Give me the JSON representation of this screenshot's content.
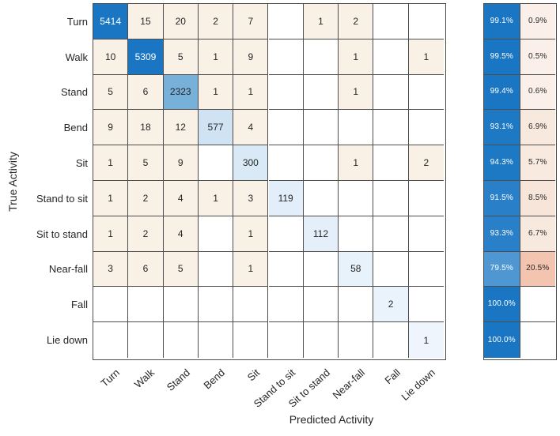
{
  "chart_data": {
    "type": "heatmap",
    "subtype": "confusion_matrix",
    "title": "",
    "xlabel": "Predicted Activity",
    "ylabel": "True Activity",
    "legend_position": "none",
    "grid": true,
    "classes": [
      "Turn",
      "Walk",
      "Stand",
      "Bend",
      "Sit",
      "Stand to sit",
      "Sit to stand",
      "Near-fall",
      "Fall",
      "Lie down"
    ],
    "matrix": [
      [
        5414,
        15,
        20,
        2,
        7,
        null,
        1,
        2,
        null,
        null
      ],
      [
        10,
        5309,
        5,
        1,
        9,
        null,
        null,
        1,
        null,
        1
      ],
      [
        5,
        6,
        2323,
        1,
        1,
        null,
        null,
        1,
        null,
        null
      ],
      [
        9,
        18,
        12,
        577,
        4,
        null,
        null,
        null,
        null,
        null
      ],
      [
        1,
        5,
        9,
        null,
        300,
        null,
        null,
        1,
        null,
        2
      ],
      [
        1,
        2,
        4,
        1,
        3,
        119,
        null,
        null,
        null,
        null
      ],
      [
        1,
        2,
        4,
        null,
        1,
        null,
        112,
        null,
        null,
        null
      ],
      [
        3,
        6,
        5,
        null,
        1,
        null,
        null,
        58,
        null,
        null
      ],
      [
        null,
        null,
        null,
        null,
        null,
        null,
        null,
        null,
        2,
        null
      ],
      [
        null,
        null,
        null,
        null,
        null,
        null,
        null,
        null,
        null,
        1
      ]
    ],
    "row_summary": {
      "correct": [
        "99.1%",
        "99.5%",
        "99.4%",
        "93.1%",
        "94.3%",
        "91.5%",
        "93.3%",
        "79.5%",
        "100.0%",
        "100.0%"
      ],
      "incorrect": [
        "0.9%",
        "0.5%",
        "0.6%",
        "6.9%",
        "5.7%",
        "8.5%",
        "6.7%",
        "20.5%",
        "",
        ""
      ]
    },
    "colors": {
      "diagonal_fill": [
        "#1a76c3",
        "#1a76c3",
        "#77b0d8",
        "#cfe3f3",
        "#d9e9f6",
        "#e2eef9",
        "#e4eff9",
        "#e8f2fa",
        "#eaf3fb",
        "#eef5fc"
      ],
      "diagonal_text": [
        "#ffffff",
        "#ffffff",
        "#262626",
        "#262626",
        "#262626",
        "#262626",
        "#262626",
        "#262626",
        "#262626",
        "#262626"
      ],
      "offdiag_fill": "#f9f0e6",
      "zero_fill": "#ffffff",
      "summary_correct_fill": [
        "#1a76c3",
        "#1a76c3",
        "#1a76c3",
        "#1e79c4",
        "#1e79c4",
        "#2a80c8",
        "#2a80c8",
        "#4e97d3",
        "#1a76c3",
        "#1a76c3"
      ],
      "summary_correct_text": "#ffffff",
      "summary_incorrect_fill": [
        "#faf0e9",
        "#faf0e9",
        "#faf0e9",
        "#f8e9de",
        "#f8eadf",
        "#f6e5d8",
        "#f8e9de",
        "#f3c5b1",
        "#ffffff",
        "#ffffff"
      ],
      "summary_incorrect_text": "#262626",
      "grid_line": "#4d4d4d",
      "text": "#262626"
    }
  }
}
